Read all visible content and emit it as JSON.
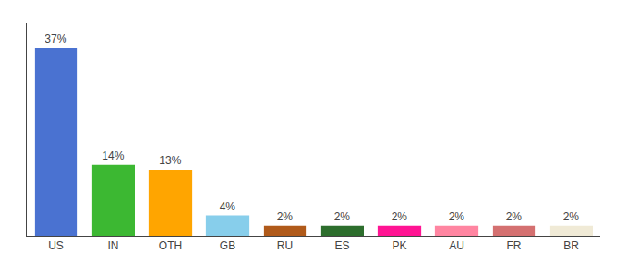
{
  "chart_data": {
    "type": "bar",
    "categories": [
      "US",
      "IN",
      "OTH",
      "GB",
      "RU",
      "ES",
      "PK",
      "AU",
      "FR",
      "BR"
    ],
    "values": [
      37,
      14,
      13,
      4,
      2,
      2,
      2,
      2,
      2,
      2
    ],
    "value_labels": [
      "37%",
      "14%",
      "13%",
      "4%",
      "2%",
      "2%",
      "2%",
      "2%",
      "2%",
      "2%"
    ],
    "colors": [
      "#4a72d1",
      "#3cb832",
      "#ffa500",
      "#87ceeb",
      "#b05a1a",
      "#2d6e2d",
      "#ff1493",
      "#ff85a1",
      "#d47070",
      "#f0ead6"
    ],
    "ylim": [
      0,
      42
    ],
    "tick_labels": "x",
    "grid": false
  }
}
